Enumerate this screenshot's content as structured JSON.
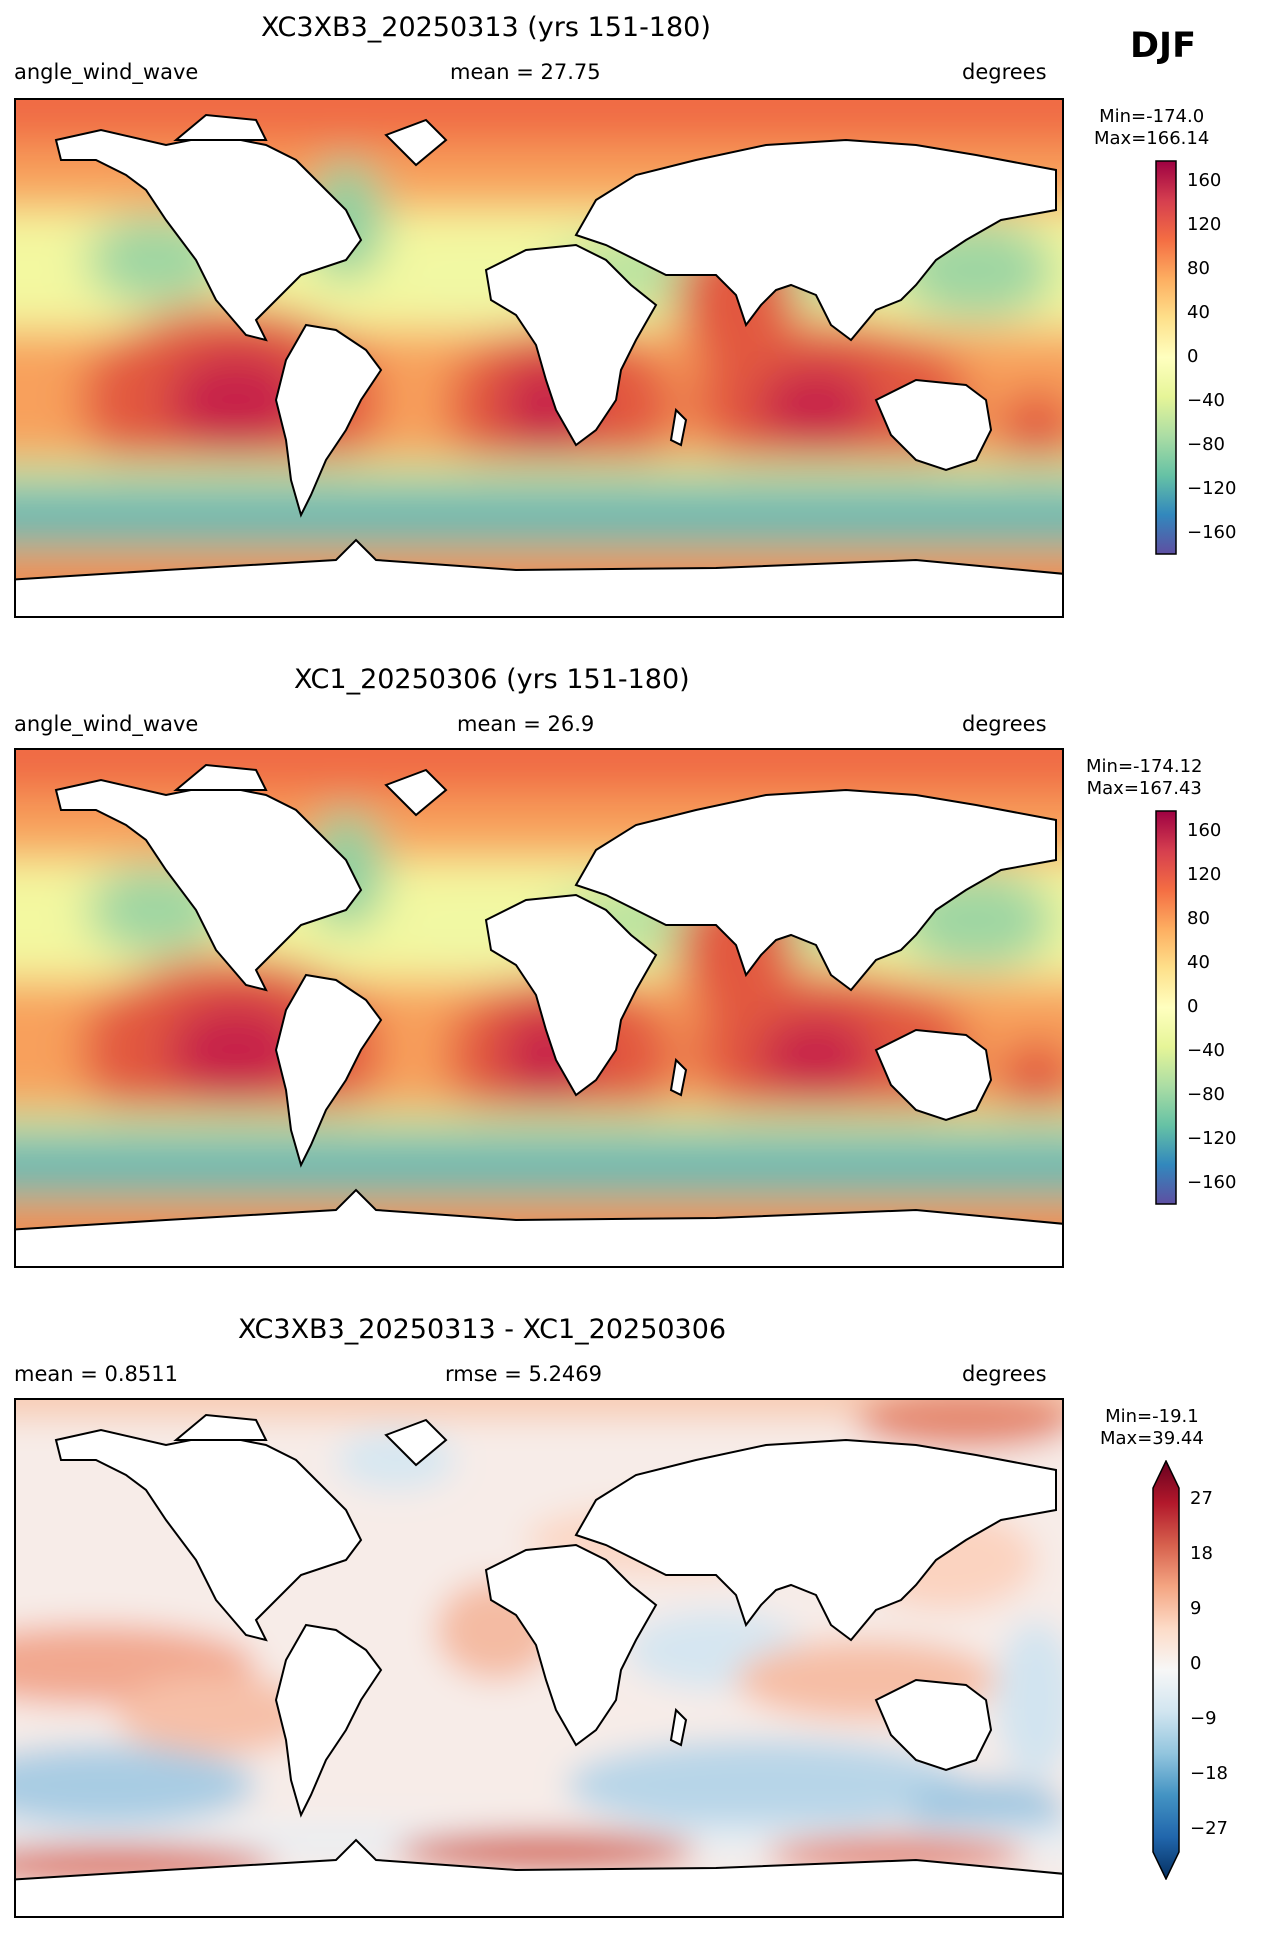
{
  "season": "DJF",
  "panels": [
    {
      "title": "XC3XB3_20250313 (yrs 151-180)",
      "left": "angle_wind_wave",
      "center": "mean = 27.75",
      "right": "degrees",
      "min": "Min=-174.0",
      "max": "Max=166.14",
      "colorbar_ticks": [
        "160",
        "120",
        "80",
        "40",
        "0",
        "−40",
        "−80",
        "−120",
        "−160"
      ]
    },
    {
      "title": "XC1_20250306 (yrs 151-180)",
      "left": "angle_wind_wave",
      "center": "mean = 26.9",
      "right": "degrees",
      "min": "Min=-174.12",
      "max": "Max=167.43",
      "colorbar_ticks": [
        "160",
        "120",
        "80",
        "40",
        "0",
        "−40",
        "−80",
        "−120",
        "−160"
      ]
    },
    {
      "title": "XC3XB3_20250313 - XC1_20250306",
      "left": "mean = 0.8511",
      "center": "rmse = 5.2469",
      "right": "degrees",
      "min": "Min=-19.1",
      "max": "Max=39.44",
      "colorbar_ticks": [
        "27",
        "18",
        "9",
        "0",
        "−9",
        "−18",
        "−27"
      ]
    }
  ],
  "colors": {
    "spectral": [
      "#5e4fa2",
      "#3288bd",
      "#66c2a5",
      "#abdda4",
      "#e6f598",
      "#ffffbf",
      "#fee08b",
      "#fdae61",
      "#f46d43",
      "#d53e4f",
      "#9e0142"
    ],
    "rdbu": [
      "#053061",
      "#2166ac",
      "#4393c3",
      "#92c5de",
      "#d1e5f0",
      "#f7f7f7",
      "#fddbc7",
      "#f4a582",
      "#d6604d",
      "#b2182b",
      "#67001f"
    ]
  }
}
